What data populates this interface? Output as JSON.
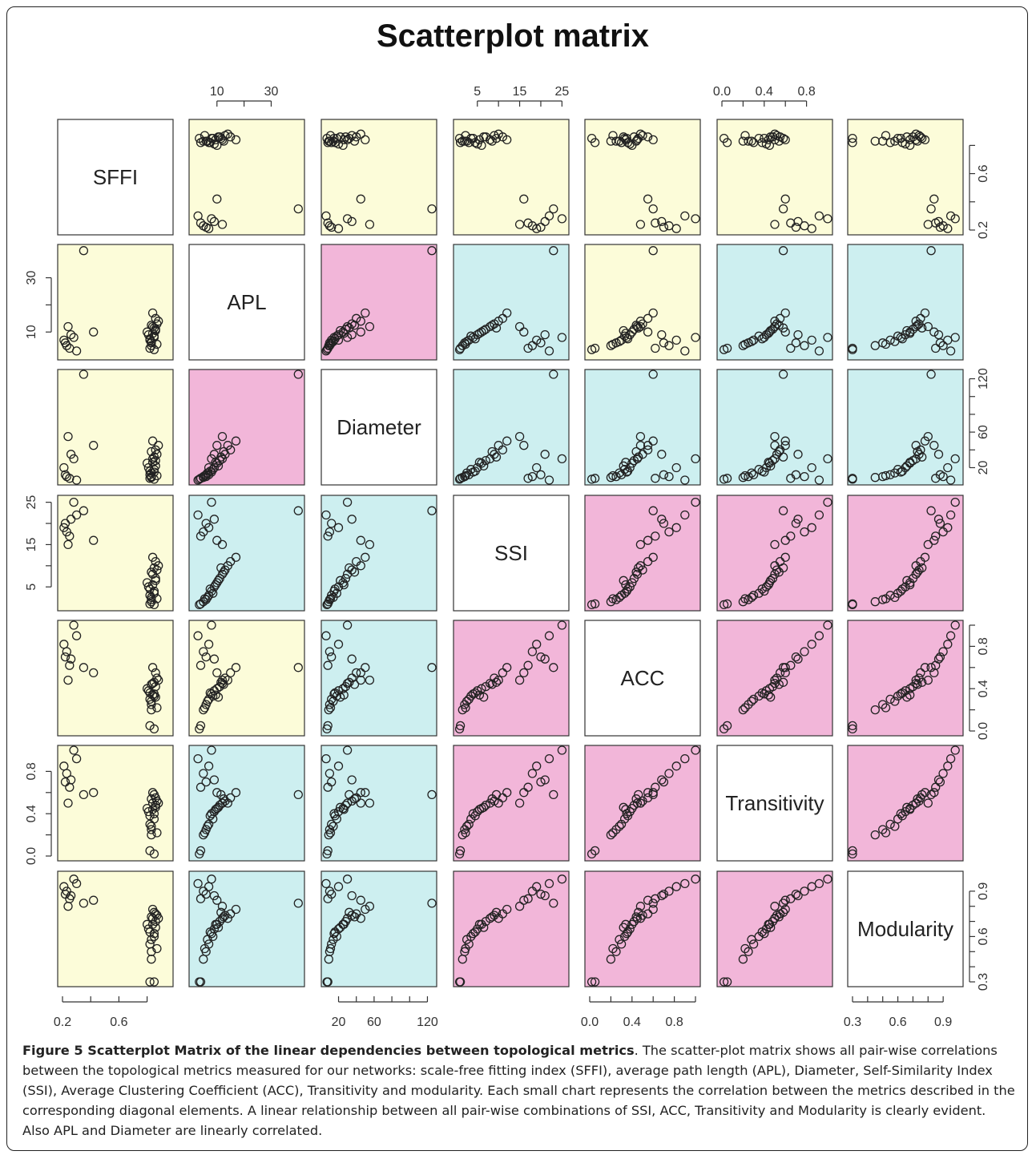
{
  "figure": {
    "title": "Scatterplot matrix",
    "caption_label": "Figure 5 Scatterplot Matrix of the linear dependencies between topological metrics",
    "caption_text": ". The scatter-plot matrix shows all pair-wise correlations between the topological metrics measured for our networks: scale-free fitting index (SFFI), average path length (APL), Diameter, Self-Similarity Index (SSI), Average Clustering Coefficient (ACC), Transitivity and modularity. Each small chart represents the correlation between the metrics described in the corresponding diagonal elements. A linear relationship between all pair-wise combinations of SSI, ACC, Transitivity and Modularity is clearly evident. Also APL and Diameter are linearly correlated."
  },
  "colors": {
    "yellow": "#fcfcd9",
    "cyan": "#cdeff0",
    "pink": "#f2b6d9",
    "diagonal": "#ffffff",
    "point": "#222222"
  },
  "chart_data": {
    "type": "scatter",
    "title": "Scatterplot matrix",
    "variables": [
      "SFFI",
      "APL",
      "Diameter",
      "SSI",
      "ACC",
      "Transitivity",
      "Modularity"
    ],
    "ranges": [
      [
        0.2,
        0.95
      ],
      [
        1.5,
        40.5
      ],
      [
        6,
        125
      ],
      [
        0.5,
        25.5
      ],
      [
        0.0,
        1.0
      ],
      [
        0.0,
        1.0
      ],
      [
        0.3,
        1.0
      ]
    ],
    "ticks": [
      {
        "values": [
          0.2,
          0.6
        ],
        "minor": [
          0.4,
          0.8
        ]
      },
      {
        "values": [
          10,
          30
        ],
        "minor": [
          20
        ]
      },
      {
        "values": [
          20,
          60,
          120
        ],
        "minor": [
          40,
          80,
          100
        ]
      },
      {
        "values": [
          5,
          15,
          25
        ],
        "minor": [
          10,
          20
        ]
      },
      {
        "values": [
          0.0,
          0.4,
          0.8
        ],
        "minor": [
          0.2,
          0.6,
          1.0
        ]
      },
      {
        "values": [
          0.0,
          0.4,
          0.8
        ],
        "minor": [
          0.2,
          0.6
        ]
      },
      {
        "values": [
          0.3,
          0.6,
          0.9
        ],
        "minor": [
          0.4,
          0.5,
          0.7,
          0.8
        ]
      }
    ],
    "tick_labels": [
      [
        "0.2",
        "0.6"
      ],
      [
        "10",
        "30"
      ],
      [
        "20",
        "60",
        "120"
      ],
      [
        "5",
        "15",
        "25"
      ],
      [
        "0.0",
        "0.4",
        "0.8"
      ],
      [
        "0.0",
        "0.4",
        "0.8"
      ],
      [
        "0.3",
        "0.6",
        "0.9"
      ]
    ],
    "axis_placement": {
      "top": [
        1,
        3,
        5
      ],
      "bottom": [
        0,
        2,
        4,
        6
      ],
      "left": [
        1,
        3,
        5
      ],
      "right": [
        0,
        2,
        4,
        6
      ]
    },
    "panel_colors": [
      [
        "diagonal",
        "yellow",
        "yellow",
        "yellow",
        "yellow",
        "yellow",
        "yellow"
      ],
      [
        "yellow",
        "diagonal",
        "pink",
        "cyan",
        "yellow",
        "cyan",
        "cyan"
      ],
      [
        "yellow",
        "pink",
        "diagonal",
        "cyan",
        "cyan",
        "cyan",
        "cyan"
      ],
      [
        "yellow",
        "cyan",
        "cyan",
        "diagonal",
        "pink",
        "pink",
        "pink"
      ],
      [
        "yellow",
        "yellow",
        "cyan",
        "pink",
        "diagonal",
        "pink",
        "pink"
      ],
      [
        "yellow",
        "cyan",
        "cyan",
        "pink",
        "pink",
        "diagonal",
        "pink"
      ],
      [
        "yellow",
        "cyan",
        "cyan",
        "pink",
        "pink",
        "pink",
        "diagonal"
      ]
    ],
    "observations": [
      [
        0.82,
        7.0,
        12,
        3.0,
        0.3,
        0.3,
        0.55
      ],
      [
        0.83,
        6.0,
        10,
        2.0,
        0.25,
        0.25,
        0.5
      ],
      [
        0.85,
        8.0,
        15,
        4.0,
        0.35,
        0.4,
        0.62
      ],
      [
        0.8,
        10.0,
        25,
        6.0,
        0.4,
        0.45,
        0.68
      ],
      [
        0.84,
        12.0,
        30,
        8.0,
        0.45,
        0.5,
        0.72
      ],
      [
        0.86,
        11.0,
        28,
        7.0,
        0.42,
        0.48,
        0.7
      ],
      [
        0.81,
        9.0,
        20,
        5.0,
        0.38,
        0.42,
        0.65
      ],
      [
        0.87,
        13.0,
        35,
        9.0,
        0.5,
        0.52,
        0.74
      ],
      [
        0.83,
        5.0,
        9,
        1.5,
        0.2,
        0.2,
        0.45
      ],
      [
        0.82,
        4.0,
        8,
        1.0,
        0.05,
        0.05,
        0.3
      ],
      [
        0.85,
        3.5,
        7,
        0.8,
        0.02,
        0.02,
        0.3
      ],
      [
        0.86,
        15.0,
        40,
        11.0,
        0.55,
        0.55,
        0.75
      ],
      [
        0.84,
        17.0,
        50,
        12.0,
        0.6,
        0.6,
        0.78
      ],
      [
        0.88,
        14.0,
        45,
        10.0,
        0.48,
        0.5,
        0.72
      ],
      [
        0.83,
        6.5,
        14,
        2.5,
        0.28,
        0.28,
        0.58
      ],
      [
        0.85,
        8.5,
        18,
        3.5,
        0.33,
        0.35,
        0.6
      ],
      [
        0.82,
        7.5,
        16,
        4.5,
        0.36,
        0.38,
        0.63
      ],
      [
        0.86,
        10.5,
        22,
        6.5,
        0.32,
        0.46,
        0.66
      ],
      [
        0.84,
        9.5,
        26,
        5.5,
        0.34,
        0.44,
        0.68
      ],
      [
        0.83,
        12.5,
        38,
        8.5,
        0.44,
        0.54,
        0.73
      ],
      [
        0.87,
        5.5,
        11,
        2.2,
        0.22,
        0.22,
        0.52
      ],
      [
        0.85,
        11.5,
        32,
        9.5,
        0.46,
        0.58,
        0.76
      ],
      [
        0.22,
        6.0,
        12,
        20.0,
        0.7,
        0.7,
        0.88
      ],
      [
        0.23,
        5.0,
        10,
        18.0,
        0.75,
        0.78,
        0.9
      ],
      [
        0.25,
        4.0,
        8,
        17.0,
        0.62,
        0.65,
        0.85
      ],
      [
        0.28,
        8.0,
        30,
        25.0,
        1.0,
        1.0,
        0.98
      ],
      [
        0.3,
        3.0,
        6,
        22.0,
        0.9,
        0.92,
        0.95
      ],
      [
        0.24,
        12.0,
        55,
        15.0,
        0.48,
        0.5,
        0.8
      ],
      [
        0.35,
        40.0,
        125,
        23.0,
        0.6,
        0.58,
        0.82
      ],
      [
        0.42,
        10.0,
        45,
        16.0,
        0.55,
        0.6,
        0.84
      ],
      [
        0.21,
        7.0,
        20,
        19.0,
        0.82,
        0.85,
        0.93
      ],
      [
        0.26,
        9.0,
        35,
        21.0,
        0.68,
        0.72,
        0.87
      ]
    ]
  }
}
